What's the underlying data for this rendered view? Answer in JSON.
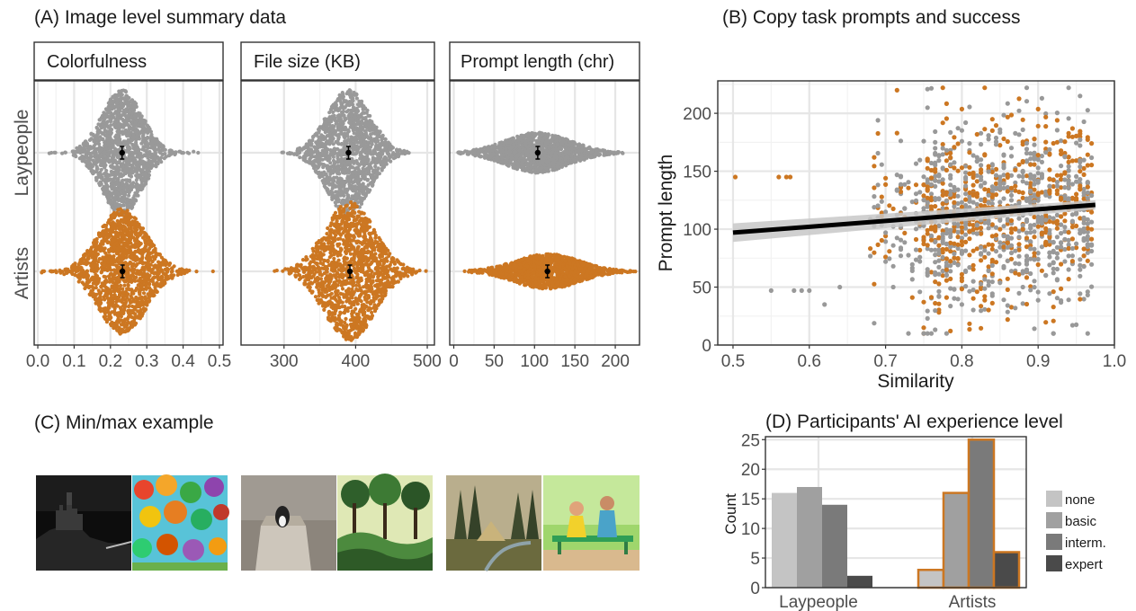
{
  "colors": {
    "laypeople": "#999999",
    "artists": "#CC7722",
    "regression": "#000000",
    "ribbon": "#c8c8c8",
    "bar_none": "#c4c4c4",
    "bar_basic": "#a0a0a0",
    "bar_interm": "#7a7a7a",
    "bar_expert": "#4a4a4a",
    "bar_artist_outline": "#CC7722"
  },
  "panels": {
    "A": {
      "title": "(A) Image level summary data",
      "row_labels": [
        "Laypeople",
        "Artists"
      ],
      "facets": [
        {
          "strip": "Colorfulness",
          "xlim": [
            -0.01,
            0.51
          ],
          "ticks": [
            "0.0",
            "0.1",
            "0.2",
            "0.3",
            "0.4",
            "0.5"
          ],
          "tick_values": [
            0.0,
            0.1,
            0.2,
            0.3,
            0.4,
            0.5
          ],
          "groups": [
            {
              "group": "Laypeople",
              "mean": 0.232,
              "spread": 0.055,
              "min": 0.03,
              "max": 0.45,
              "height": 1.0
            },
            {
              "group": "Artists",
              "mean": 0.233,
              "spread": 0.065,
              "min": 0.01,
              "max": 0.49,
              "height": 1.0
            }
          ]
        },
        {
          "strip": "File size (KB)",
          "xlim": [
            240,
            510
          ],
          "ticks": [
            "300",
            "400",
            "500"
          ],
          "tick_values": [
            300,
            400,
            500
          ],
          "groups": [
            {
              "group": "Laypeople",
              "mean": 390,
              "spread": 30,
              "min": 285,
              "max": 475,
              "height": 1.0
            },
            {
              "group": "Artists",
              "mean": 392,
              "spread": 35,
              "min": 270,
              "max": 500,
              "height": 1.1
            }
          ]
        },
        {
          "strip": "Prompt length (chr)",
          "xlim": [
            -5,
            230
          ],
          "ticks": [
            "0",
            "50",
            "100",
            "150",
            "200"
          ],
          "tick_values": [
            0,
            50,
            100,
            150,
            200
          ],
          "groups": [
            {
              "group": "Laypeople",
              "mean": 104,
              "spread": 40,
              "min": 5,
              "max": 210,
              "height": 0.32
            },
            {
              "group": "Artists",
              "mean": 116,
              "spread": 40,
              "min": 10,
              "max": 225,
              "height": 0.28
            }
          ]
        }
      ]
    },
    "B": {
      "title": "(B) Copy task prompts and success",
      "xlabel": "Similarity",
      "ylabel": "Prompt length",
      "xlim": [
        0.48,
        1.0
      ],
      "ylim": [
        0,
        228
      ],
      "xticks": [
        "0.5",
        "0.6",
        "0.7",
        "0.8",
        "0.9",
        "1.0"
      ],
      "xtick_values": [
        0.5,
        0.6,
        0.7,
        0.8,
        0.9,
        1.0
      ],
      "yticks": [
        "0",
        "50",
        "100",
        "150",
        "200"
      ],
      "ytick_values": [
        0,
        50,
        100,
        150,
        200
      ],
      "regression": {
        "x0": 0.5,
        "y0": 97,
        "x1": 0.975,
        "y1": 121
      }
    },
    "C": {
      "title": "(C) Min/max example"
    },
    "D": {
      "title": "(D) Participants' AI experience level",
      "ylabel": "Count",
      "ylim": [
        0,
        25.5
      ],
      "yticks": [
        "0",
        "5",
        "10",
        "15",
        "20",
        "25"
      ],
      "ytick_values": [
        0,
        5,
        10,
        15,
        20,
        25
      ],
      "categories": [
        "Laypeople",
        "Artists"
      ],
      "legend": [
        "none",
        "basic",
        "interm.",
        "expert"
      ],
      "series": [
        {
          "name": "none",
          "values": [
            16,
            3
          ]
        },
        {
          "name": "basic",
          "values": [
            17,
            16
          ]
        },
        {
          "name": "interm.",
          "values": [
            14,
            25
          ]
        },
        {
          "name": "expert",
          "values": [
            2,
            6
          ]
        }
      ]
    }
  },
  "chart_data": [
    {
      "type": "scatter",
      "title": "(A) Image level summary data",
      "facets": [
        "Colorfulness",
        "File size (KB)",
        "Prompt length (chr)"
      ],
      "rows": [
        "Laypeople",
        "Artists"
      ],
      "means": {
        "Colorfulness": {
          "Laypeople": 0.232,
          "Artists": 0.233
        },
        "File size (KB)": {
          "Laypeople": 390,
          "Artists": 392
        },
        "Prompt length (chr)": {
          "Laypeople": 104,
          "Artists": 116
        }
      }
    },
    {
      "type": "scatter",
      "title": "(B) Copy task prompts and success",
      "xlabel": "Similarity",
      "ylabel": "Prompt length",
      "xlim": [
        0.48,
        1.0
      ],
      "ylim": [
        0,
        228
      ],
      "series": [
        {
          "name": "Laypeople"
        },
        {
          "name": "Artists"
        }
      ],
      "trend": {
        "x": [
          0.5,
          0.975
        ],
        "y": [
          97,
          121
        ]
      }
    },
    {
      "type": "bar",
      "title": "(D) Participants' AI experience level",
      "ylabel": "Count",
      "categories": [
        "Laypeople",
        "Artists"
      ],
      "series": [
        {
          "name": "none",
          "values": [
            16,
            3
          ]
        },
        {
          "name": "basic",
          "values": [
            17,
            16
          ]
        },
        {
          "name": "interm.",
          "values": [
            14,
            25
          ]
        },
        {
          "name": "expert",
          "values": [
            2,
            6
          ]
        }
      ],
      "ylim": [
        0,
        25.5
      ]
    }
  ]
}
